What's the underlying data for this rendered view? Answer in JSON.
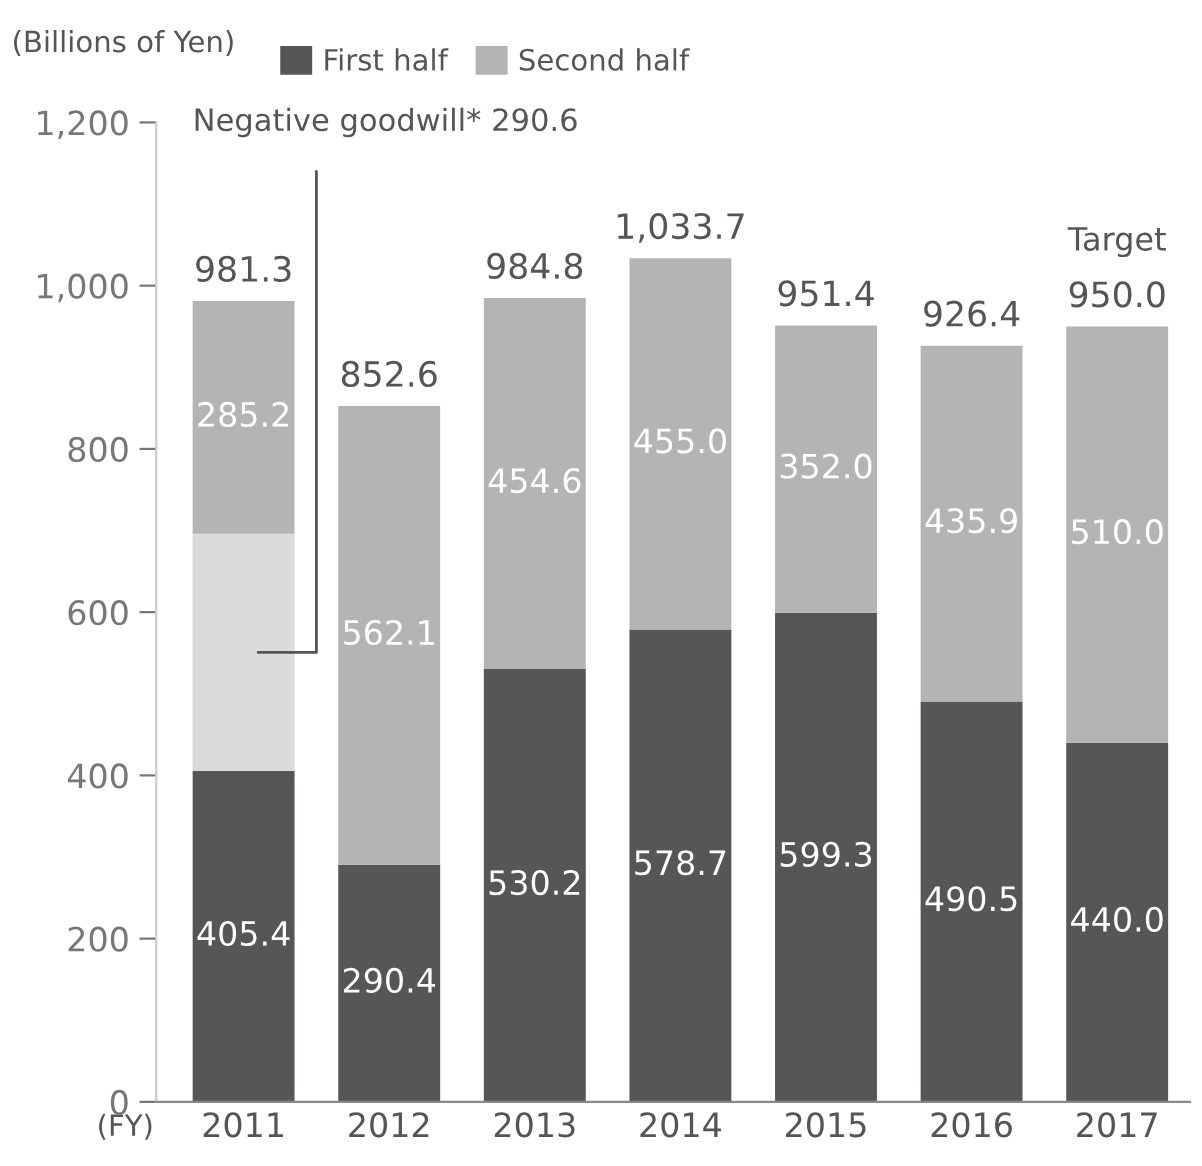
{
  "chart_data": {
    "type": "bar",
    "stacked": true,
    "ylabel": "(Billions of Yen)",
    "xlabel": "(FY)",
    "categories": [
      "2011",
      "2012",
      "2013",
      "2014",
      "2015",
      "2016",
      "2017"
    ],
    "series": [
      {
        "name": "First half",
        "color": "#575556",
        "values": [
          405.4,
          290.4,
          530.2,
          578.7,
          599.3,
          490.5,
          440.0
        ],
        "value_labels": [
          "405.4",
          "290.4",
          "530.2",
          "578.7",
          "599.3",
          "490.5",
          "440.0"
        ]
      },
      {
        "color": "#dadbdb",
        "values": [
          290.6,
          null,
          null,
          null,
          null,
          null,
          null
        ]
      },
      {
        "name": "Second half",
        "color": "#b3b4b4",
        "values": [
          285.2,
          562.1,
          454.6,
          455.0,
          352.0,
          435.9,
          510.0
        ],
        "value_labels": [
          "285.2",
          "562.1",
          "454.6",
          "455.0",
          "352.0",
          "435.9",
          "510.0"
        ]
      }
    ],
    "totals": [
      "981.3",
      "852.6",
      "984.8",
      "1,033.7",
      "951.4",
      "926.4",
      "950.0"
    ],
    "annotations": [
      "Negative goodwill* 290.6",
      "Target"
    ],
    "ylim": [
      0,
      1200
    ],
    "yticks": [
      0,
      200,
      400,
      600,
      800,
      {
        "value": 1000,
        "label": "1,000"
      },
      {
        "value": 1200,
        "label": "1,200"
      }
    ],
    "legend": "top left",
    "grid": false
  }
}
